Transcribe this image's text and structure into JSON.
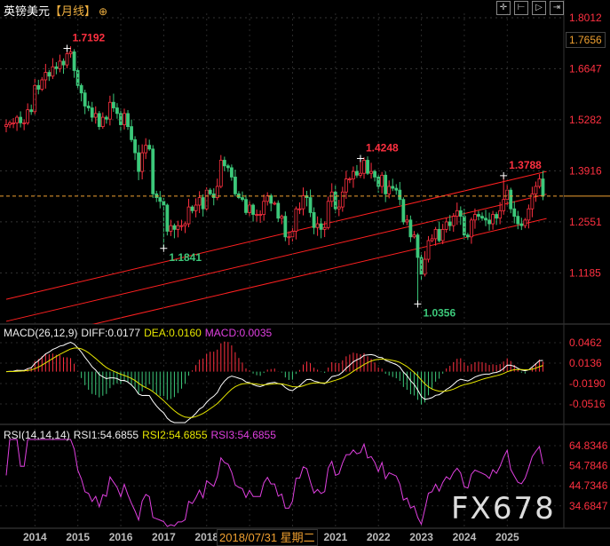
{
  "header": {
    "instrument": "英镑美元",
    "period": "【月线】",
    "icon": "crosshair-circle-icon"
  },
  "toolbar": [
    {
      "icon": "crosshair-icon",
      "glyph": "✛"
    },
    {
      "icon": "fit-range-icon",
      "glyph": "⊢"
    },
    {
      "icon": "play-forward-icon",
      "glyph": "▷"
    },
    {
      "icon": "jump-end-icon",
      "glyph": "⇥"
    }
  ],
  "cursor_price": "1.7656",
  "macd": {
    "label": "MACD(26,12,9)",
    "diff": "DIFF:0.0177",
    "dea": "DEA:0.0160",
    "macd": "MACD:0.0035",
    "axis": [
      "0.0462",
      "0.0136",
      "-0.0190",
      "-0.0516"
    ]
  },
  "rsi": {
    "label": "RSI(14,14,14)",
    "rsi1": "RSI1:54.6855",
    "rsi2": "RSI2:54.6855",
    "rsi3": "RSI3:54.6855",
    "axis": [
      "64.8346",
      "54.7846",
      "44.7346",
      "34.6847"
    ]
  },
  "cursor_date": "2018/07/31 星期二",
  "watermark": "FX678",
  "colors": {
    "up": "#ff3040",
    "down": "#3cc87a",
    "diff": "#ffffff",
    "dea": "#e6e600",
    "rsi": "#e040e0",
    "axis": "#ff3040",
    "current": "#f0a030"
  },
  "chart_data": {
    "type": "candlestick",
    "interval": "monthly",
    "start": "2013-02",
    "price_axis": [
      "1.8012",
      "1.6647",
      "1.5282",
      "1.3916",
      "1.2551",
      "1.1185"
    ],
    "ylim": [
      1.01,
      1.81
    ],
    "x_ticks": [
      "2014",
      "2015",
      "2016",
      "2017",
      "2018",
      "2021",
      "2022",
      "2023",
      "2024",
      "2025"
    ],
    "current_price": 1.324,
    "closes": [
      1.515,
      1.52,
      1.52,
      1.535,
      1.52,
      1.52,
      1.555,
      1.55,
      1.62,
      1.61,
      1.635,
      1.655,
      1.645,
      1.67,
      1.665,
      1.685,
      1.675,
      1.705,
      1.71,
      1.66,
      1.62,
      1.6,
      1.565,
      1.56,
      1.535,
      1.545,
      1.51,
      1.535,
      1.53,
      1.575,
      1.56,
      1.545,
      1.515,
      1.545,
      1.51,
      1.475,
      1.44,
      1.39,
      1.44,
      1.46,
      1.45,
      1.33,
      1.32,
      1.31,
      1.3,
      1.23,
      1.245,
      1.235,
      1.245,
      1.245,
      1.25,
      1.295,
      1.285,
      1.3,
      1.32,
      1.29,
      1.34,
      1.33,
      1.32,
      1.35,
      1.42,
      1.405,
      1.4,
      1.375,
      1.33,
      1.32,
      1.315,
      1.28,
      1.3,
      1.275,
      1.275,
      1.275,
      1.31,
      1.325,
      1.305,
      1.305,
      1.265,
      1.27,
      1.215,
      1.215,
      1.23,
      1.29,
      1.29,
      1.325,
      1.32,
      1.28,
      1.24,
      1.25,
      1.235,
      1.24,
      1.31,
      1.335,
      1.29,
      1.295,
      1.335,
      1.37,
      1.37,
      1.39,
      1.38,
      1.385,
      1.42,
      1.385,
      1.39,
      1.375,
      1.35,
      1.38,
      1.33,
      1.35,
      1.345,
      1.34,
      1.315,
      1.255,
      1.26,
      1.215,
      1.22,
      1.16,
      1.115,
      1.155,
      1.205,
      1.21,
      1.235,
      1.205,
      1.235,
      1.255,
      1.245,
      1.27,
      1.285,
      1.27,
      1.22,
      1.215,
      1.26,
      1.275,
      1.27,
      1.265,
      1.26,
      1.25,
      1.275,
      1.265,
      1.285,
      1.315,
      1.34,
      1.29,
      1.27,
      1.25,
      1.245,
      1.26,
      1.29,
      1.33,
      1.35,
      1.37,
      1.324
    ],
    "annotations": [
      {
        "date": "2014-07",
        "price": 1.7192,
        "label": "1.7192",
        "kind": "high"
      },
      {
        "date": "2016-10",
        "price": 1.1841,
        "label": "1.1841",
        "kind": "low"
      },
      {
        "date": "2021-05",
        "price": 1.4248,
        "label": "1.4248",
        "kind": "high"
      },
      {
        "date": "2022-09",
        "price": 1.0356,
        "label": "1.0356",
        "kind": "low"
      },
      {
        "date": "2024-09",
        "price": 1.3788,
        "label": "1.3788",
        "kind": "high"
      }
    ],
    "channel_lines": [
      {
        "from": [
          "2013-02",
          1.048
        ],
        "to": [
          "2025-09",
          1.39
        ]
      },
      {
        "from": [
          "2013-02",
          0.989
        ],
        "to": [
          "2025-09",
          1.329
        ]
      },
      {
        "from": [
          "2013-02",
          0.927
        ],
        "to": [
          "2025-09",
          1.264
        ]
      }
    ],
    "macd_params": [
      26,
      12,
      9
    ],
    "rsi_period": 14
  }
}
